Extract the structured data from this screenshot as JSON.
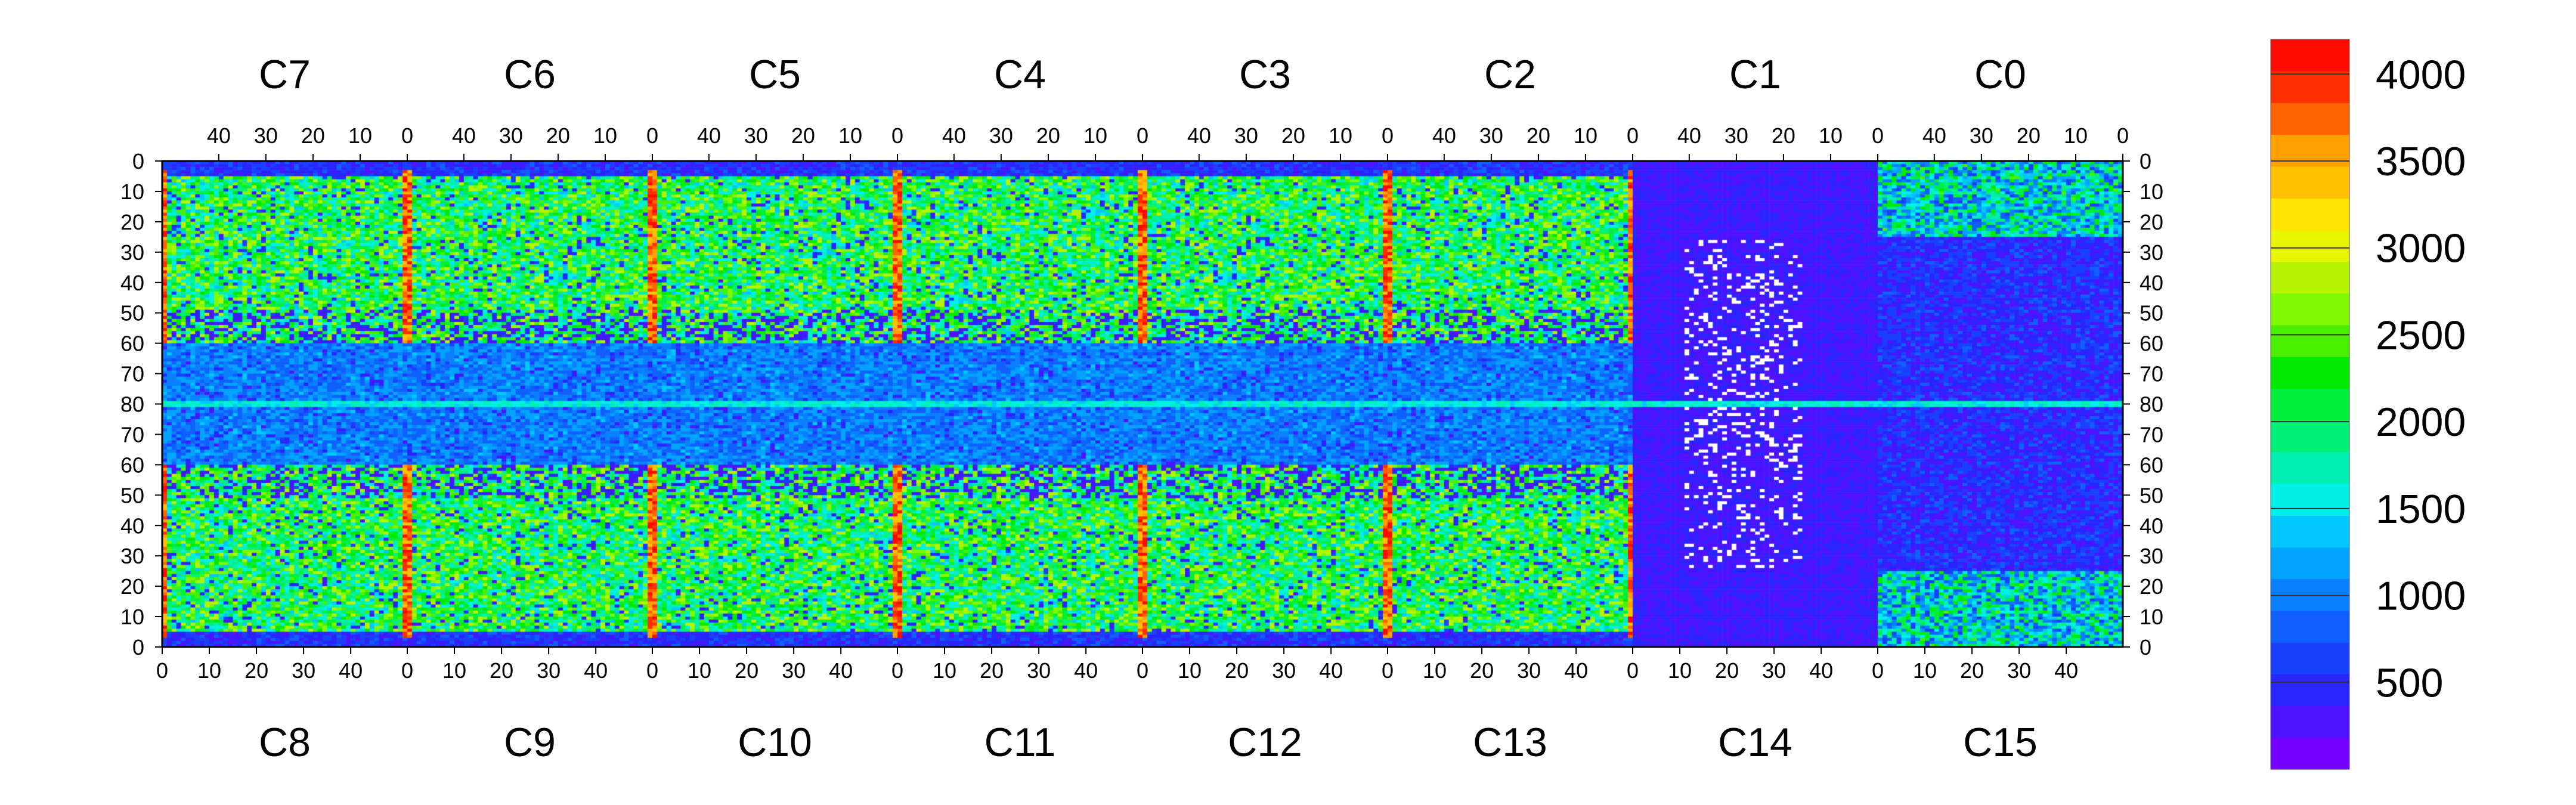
{
  "chart_data": {
    "type": "heatmap",
    "title": "",
    "xlabel": "",
    "ylabel": "",
    "top_chips": [
      "C7",
      "C6",
      "C5",
      "C4",
      "C3",
      "C2",
      "C1",
      "C0"
    ],
    "bottom_chips": [
      "C8",
      "C9",
      "C10",
      "C11",
      "C12",
      "C13",
      "C14",
      "C15"
    ],
    "top_axis_ticks": [
      "40",
      "30",
      "20",
      "10",
      "0"
    ],
    "bottom_axis_ticks": [
      "0",
      "10",
      "20",
      "30",
      "40"
    ],
    "y_ticks": [
      "0",
      "10",
      "20",
      "30",
      "40",
      "50",
      "60",
      "70",
      "80",
      "70",
      "60",
      "50",
      "40",
      "30",
      "20",
      "10",
      "0"
    ],
    "columns_per_chip": 52,
    "rows_per_half": 80,
    "colorbar": {
      "range": [
        0,
        4200
      ],
      "ticks": [
        500,
        1000,
        1500,
        2000,
        2500,
        3000,
        3500,
        4000
      ],
      "tick_labels": [
        "500",
        "1000",
        "1500",
        "2000",
        "2500",
        "3000",
        "3500",
        "4000"
      ],
      "colors": [
        "#7300ff",
        "#4f12ff",
        "#2a24ff",
        "#1a40ff",
        "#1060ff",
        "#0a80ff",
        "#00a4ff",
        "#00c8ff",
        "#00f0e6",
        "#00f0b4",
        "#00f078",
        "#00ee3c",
        "#00ea00",
        "#4af000",
        "#80f800",
        "#b4f400",
        "#e8f400",
        "#ffe400",
        "#ffc000",
        "#ffa000",
        "#ff6400",
        "#ff3000",
        "#ff0a00"
      ]
    },
    "notes": "Per-pixel value map of 16 sensor chips (C0-C15) arranged in two rows of eight; values 0-4200 shown with a rainbow colour scale; white pixels in C1/C13 region are out of range."
  }
}
